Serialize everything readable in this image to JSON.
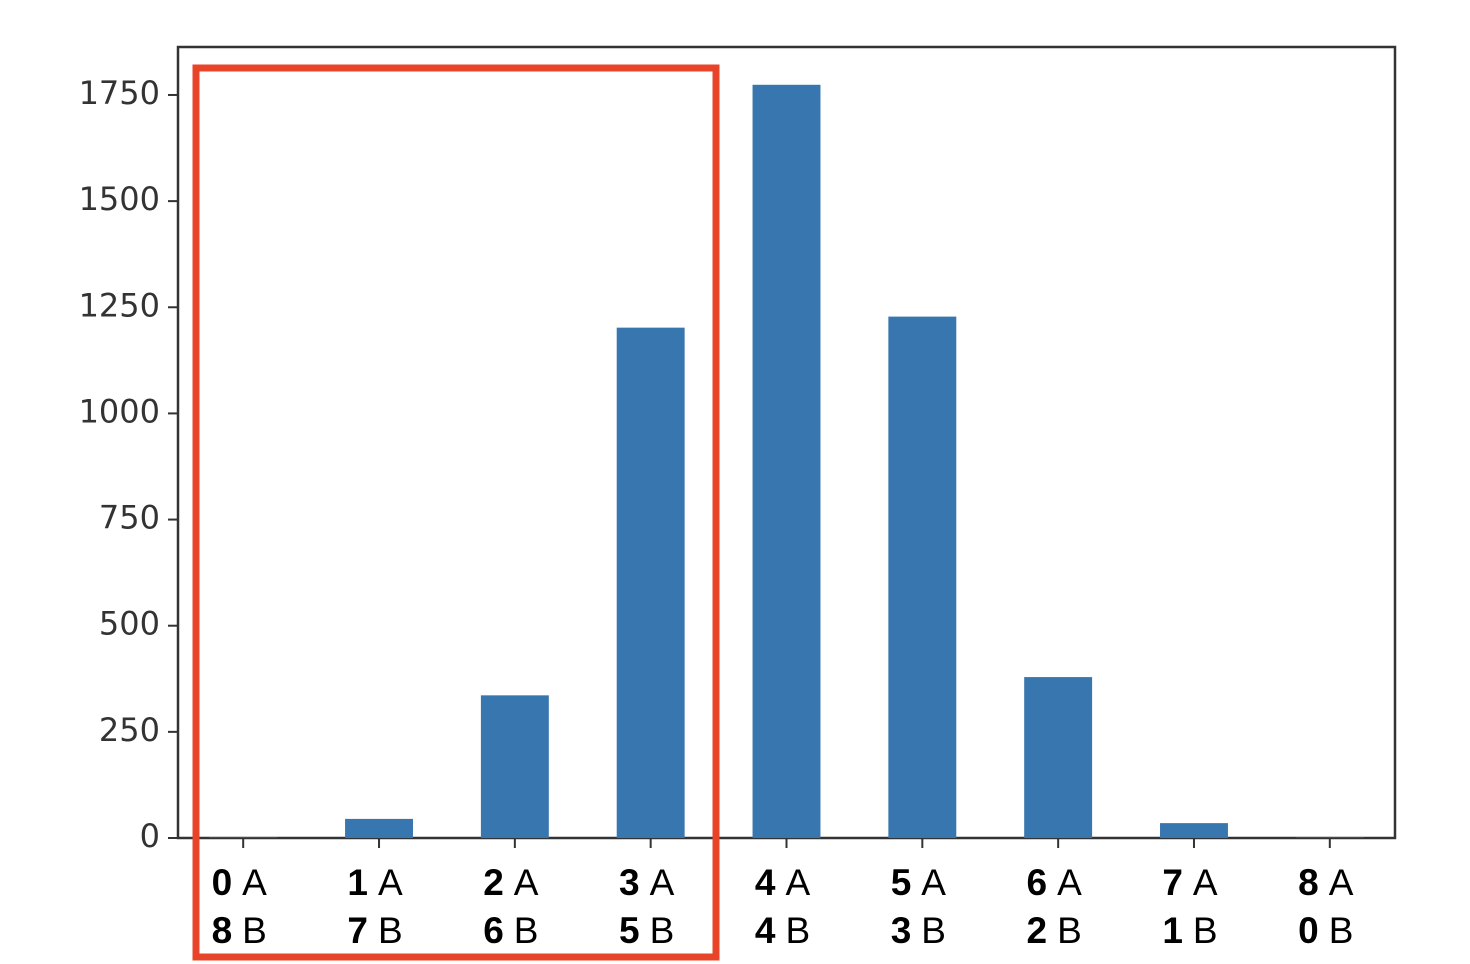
{
  "chart_data": {
    "type": "bar",
    "categories": [
      [
        0,
        8
      ],
      [
        1,
        7
      ],
      [
        2,
        6
      ],
      [
        3,
        5
      ],
      [
        4,
        4
      ],
      [
        5,
        3
      ],
      [
        6,
        2
      ],
      [
        7,
        1
      ],
      [
        8,
        0
      ]
    ],
    "group_letters": [
      "A",
      "B"
    ],
    "values": [
      1,
      45,
      336,
      1202,
      1774,
      1228,
      379,
      35,
      1
    ],
    "color": "#3776ae",
    "ylim": [
      0,
      1863
    ],
    "yticks": [
      0,
      250,
      500,
      750,
      1000,
      1250,
      1500,
      1750
    ]
  }
}
